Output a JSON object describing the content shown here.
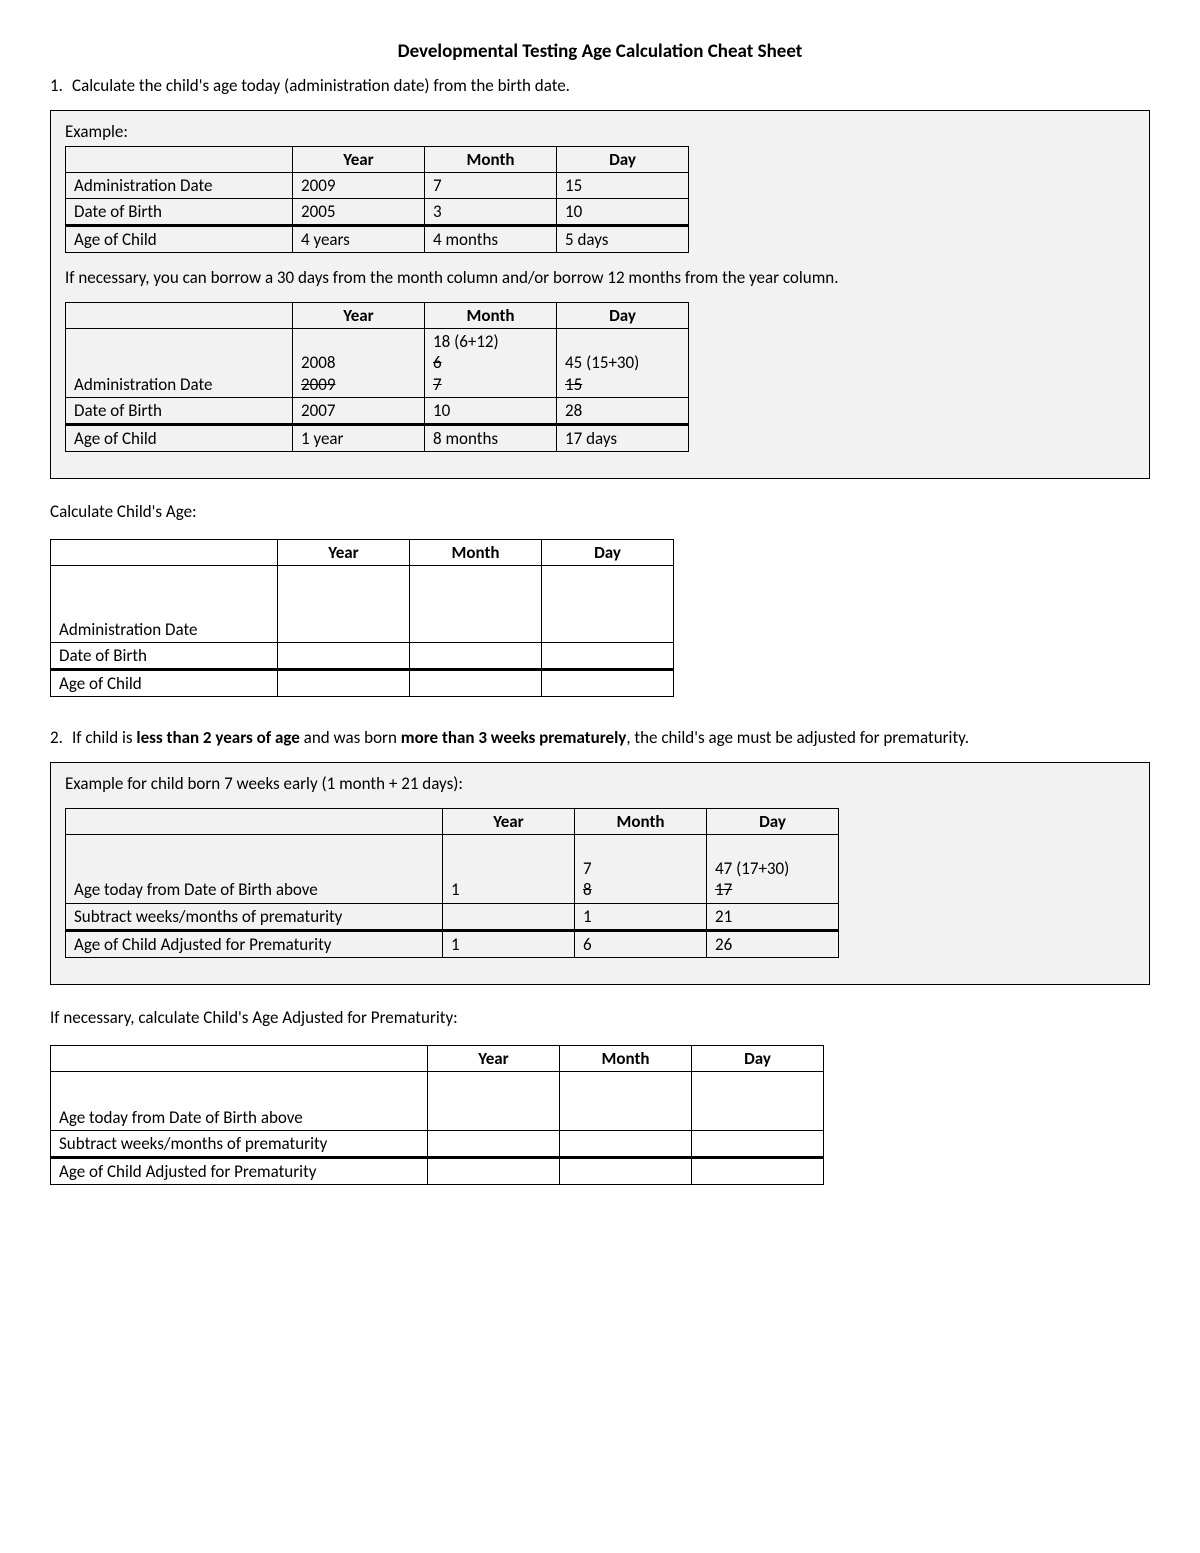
{
  "title": "Developmental Testing Age Calculation Cheat Sheet",
  "step1": {
    "num": "1.",
    "text": "Calculate the child's age today (administration date) from the birth date."
  },
  "headers": {
    "year": "Year",
    "month": "Month",
    "day": "Day"
  },
  "example1": {
    "label": "Example:",
    "rows": {
      "admin": {
        "label": "Administration Date",
        "year": "2009",
        "month": "7",
        "day": "15"
      },
      "dob": {
        "label": "Date of Birth",
        "year": "2005",
        "month": "3",
        "day": "10"
      },
      "age": {
        "label": "Age of Child",
        "year": "4 years",
        "month": "4 months",
        "day": "5 days"
      }
    },
    "borrow_note": "If necessary, you can borrow a 30 days from the month column and/or borrow 12 months from the year column."
  },
  "example1b": {
    "admin_label": "Administration Date",
    "year_top": "2008",
    "year_strike": "2009",
    "month_top": "18 (6+12)",
    "month_strike1": "6",
    "month_strike2": "7",
    "day_top": "45 (15+30)",
    "day_strike": "15",
    "dob": {
      "label": "Date of Birth",
      "year": "2007",
      "month": "10",
      "day": "28"
    },
    "age": {
      "label": "Age of Child",
      "year": "1 year",
      "month": "8 months",
      "day": "17 days"
    }
  },
  "calc_age_label": "Calculate Child's Age:",
  "blank1": {
    "admin": "Administration Date",
    "dob": "Date of Birth",
    "age": "Age of Child"
  },
  "step2": {
    "num": "2.",
    "pre": "If child is ",
    "b1": "less than 2 years of age",
    "mid": " and was born ",
    "b2": "more than 3 weeks prematurely",
    "post": ", the child's age must be adjusted for prematurity."
  },
  "example2": {
    "label": "Example for child born 7 weeks early (1 month + 21 days):",
    "rows": {
      "today_label": "Age today from Date of Birth above",
      "year": "1",
      "month_top": "7",
      "month_strike": "8",
      "day_top": "47 (17+30)",
      "day_strike": "17",
      "sub": {
        "label": "Subtract weeks/months of prematurity",
        "year": "",
        "month": "1",
        "day": "21"
      },
      "adj": {
        "label": "Age of Child Adjusted for Prematurity",
        "year": "1",
        "month": "6",
        "day": "26"
      }
    }
  },
  "calc_adj_label": "If necessary, calculate Child's Age Adjusted for Prematurity:",
  "blank2": {
    "today": "Age today from Date of Birth above",
    "sub": "Subtract weeks/months of prematurity",
    "adj": "Age of Child Adjusted for Prematurity"
  }
}
